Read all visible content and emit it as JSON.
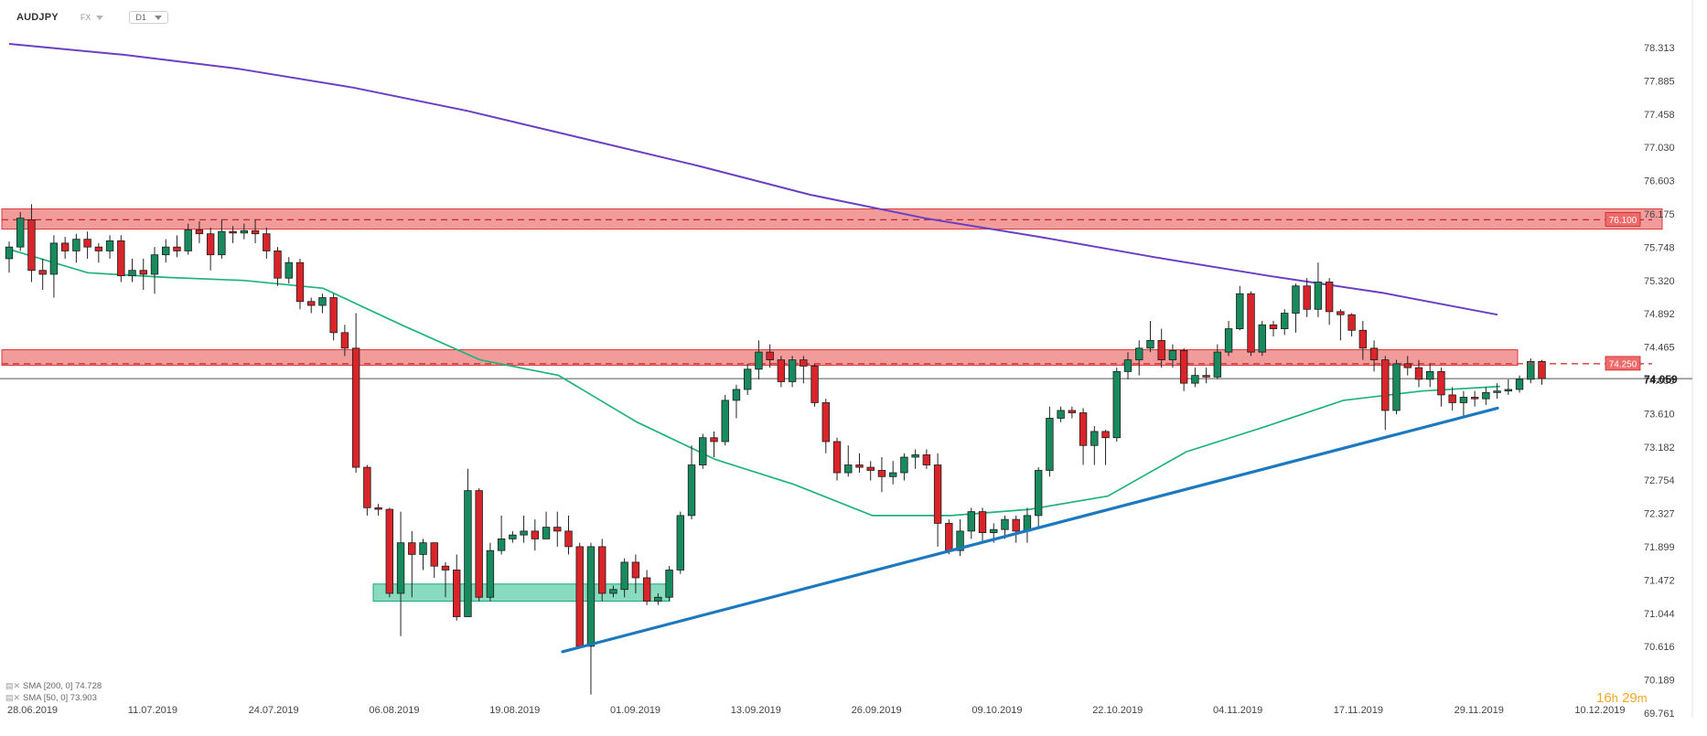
{
  "header": {
    "symbol": "AUDJPY",
    "market": "FX",
    "timeframe": "D1"
  },
  "indicators": [
    {
      "label": "SMA [200, 0] 74.728",
      "color": "#6b3fc4"
    },
    {
      "label": "SMA [50, 0] 73.903",
      "color": "#1fb37a"
    }
  ],
  "timer": {
    "hours": "16",
    "h_unit": "h",
    "minutes": "29",
    "m_unit": "m"
  },
  "chart_data": {
    "type": "candlestick",
    "instrument": "AUDJPY",
    "timeframe": "D1",
    "y_ticks": [
      "78.313",
      "77.885",
      "77.458",
      "77.030",
      "76.603",
      "76.175",
      "75.748",
      "75.320",
      "74.892",
      "74.465",
      "74.038",
      "73.610",
      "73.182",
      "72.754",
      "72.327",
      "71.899",
      "71.472",
      "71.044",
      "70.616",
      "70.189",
      "69.761"
    ],
    "ylim": [
      69.761,
      78.5
    ],
    "x_ticks": [
      "28.06.2019",
      "11.07.2019",
      "24.07.2019",
      "06.08.2019",
      "19.08.2019",
      "01.09.2019",
      "13.09.2019",
      "26.09.2019",
      "09.10.2019",
      "22.10.2019",
      "04.11.2019",
      "17.11.2019",
      "29.11.2019",
      "10.12.2019"
    ],
    "current_price": "74.059",
    "levels": [
      {
        "label": "76.100",
        "value": 76.1,
        "zone": [
          75.98,
          76.24
        ]
      },
      {
        "label": "74.250",
        "value": 74.25,
        "zone": [
          74.23,
          74.43
        ]
      }
    ],
    "demand_zone": {
      "from": 71.2,
      "to": 71.42
    },
    "trendline": {
      "from": 70.55,
      "to": 73.68
    },
    "candles": [
      [
        75.6,
        75.75,
        75.82,
        75.42
      ],
      [
        75.75,
        76.12,
        76.2,
        75.7
      ],
      [
        76.1,
        75.45,
        76.3,
        75.3
      ],
      [
        75.45,
        75.4,
        75.6,
        75.2
      ],
      [
        75.4,
        75.8,
        75.9,
        75.1
      ],
      [
        75.8,
        75.7,
        75.88,
        75.6
      ],
      [
        75.7,
        75.85,
        75.92,
        75.55
      ],
      [
        75.85,
        75.75,
        75.95,
        75.6
      ],
      [
        75.75,
        75.7,
        75.8,
        75.55
      ],
      [
        75.7,
        75.83,
        75.9,
        75.6
      ],
      [
        75.83,
        75.38,
        75.9,
        75.3
      ],
      [
        75.38,
        75.45,
        75.6,
        75.3
      ],
      [
        75.45,
        75.4,
        75.6,
        75.2
      ],
      [
        75.4,
        75.65,
        75.75,
        75.15
      ],
      [
        75.65,
        75.75,
        75.85,
        75.55
      ],
      [
        75.75,
        75.7,
        75.9,
        75.62
      ],
      [
        75.7,
        75.97,
        76.05,
        75.65
      ],
      [
        75.97,
        75.92,
        76.08,
        75.8
      ],
      [
        75.92,
        75.65,
        76.0,
        75.45
      ],
      [
        75.65,
        75.95,
        76.1,
        75.6
      ],
      [
        75.95,
        75.93,
        76.02,
        75.8
      ],
      [
        75.93,
        75.96,
        76.05,
        75.85
      ],
      [
        75.96,
        75.92,
        76.1,
        75.8
      ],
      [
        75.92,
        75.7,
        76.0,
        75.6
      ],
      [
        75.7,
        75.35,
        75.75,
        75.25
      ],
      [
        75.35,
        75.55,
        75.62,
        75.28
      ],
      [
        75.55,
        75.05,
        75.6,
        74.95
      ],
      [
        75.05,
        75.0,
        75.1,
        74.9
      ],
      [
        75.0,
        75.1,
        75.15,
        74.9
      ],
      [
        75.1,
        74.65,
        75.15,
        74.55
      ],
      [
        74.65,
        74.45,
        74.75,
        74.35
      ],
      [
        74.45,
        72.92,
        74.9,
        72.85
      ],
      [
        72.92,
        72.4,
        72.95,
        72.3
      ],
      [
        72.4,
        72.38,
        72.45,
        72.3
      ],
      [
        72.38,
        71.3,
        72.4,
        71.25
      ],
      [
        71.3,
        71.95,
        72.35,
        70.75
      ],
      [
        71.95,
        71.8,
        72.1,
        71.25
      ],
      [
        71.8,
        71.95,
        72.0,
        71.6
      ],
      [
        71.95,
        71.65,
        71.95,
        71.5
      ],
      [
        71.65,
        71.6,
        71.7,
        71.25
      ],
      [
        71.6,
        71.0,
        71.8,
        70.95
      ],
      [
        71.0,
        72.62,
        72.9,
        71.0
      ],
      [
        72.62,
        71.25,
        72.65,
        71.2
      ],
      [
        71.25,
        71.85,
        71.95,
        71.2
      ],
      [
        71.85,
        72.0,
        72.3,
        71.8
      ],
      [
        72.0,
        72.05,
        72.1,
        71.95
      ],
      [
        72.05,
        72.1,
        72.3,
        71.95
      ],
      [
        72.1,
        72.0,
        72.25,
        71.85
      ],
      [
        72.0,
        72.15,
        72.35,
        72.05
      ],
      [
        72.15,
        72.1,
        72.35,
        71.9
      ],
      [
        72.1,
        71.9,
        72.3,
        71.8
      ],
      [
        71.9,
        70.62,
        71.95,
        70.6
      ],
      [
        70.62,
        71.9,
        71.95,
        70.0
      ],
      [
        71.9,
        71.3,
        72.0,
        71.2
      ],
      [
        71.3,
        71.35,
        71.4,
        71.25
      ],
      [
        71.35,
        71.7,
        71.75,
        71.25
      ],
      [
        71.7,
        71.5,
        71.8,
        71.3
      ],
      [
        71.5,
        71.2,
        71.6,
        71.15
      ],
      [
        71.2,
        71.25,
        71.3,
        71.15
      ],
      [
        71.25,
        71.6,
        71.65,
        71.2
      ],
      [
        71.6,
        72.3,
        72.35,
        71.55
      ],
      [
        72.3,
        72.95,
        73.2,
        72.25
      ],
      [
        72.95,
        73.3,
        73.35,
        72.9
      ],
      [
        73.3,
        73.25,
        73.38,
        73.05
      ],
      [
        73.25,
        73.78,
        73.85,
        73.2
      ],
      [
        73.78,
        73.92,
        73.98,
        73.55
      ],
      [
        73.92,
        74.18,
        74.25,
        73.85
      ],
      [
        74.18,
        74.4,
        74.55,
        74.05
      ],
      [
        74.4,
        74.3,
        74.5,
        74.2
      ],
      [
        74.3,
        74.02,
        74.35,
        73.95
      ],
      [
        74.02,
        74.3,
        74.35,
        73.95
      ],
      [
        74.3,
        74.22,
        74.35,
        74.0
      ],
      [
        74.22,
        73.75,
        74.25,
        73.7
      ],
      [
        73.75,
        73.25,
        73.8,
        73.1
      ],
      [
        73.25,
        72.85,
        73.3,
        72.75
      ],
      [
        72.85,
        72.95,
        73.2,
        72.8
      ],
      [
        72.95,
        72.92,
        73.1,
        72.85
      ],
      [
        72.92,
        72.88,
        73.0,
        72.75
      ],
      [
        72.88,
        72.8,
        73.05,
        72.6
      ],
      [
        72.8,
        72.85,
        73.0,
        72.7
      ],
      [
        72.85,
        73.05,
        73.1,
        72.75
      ],
      [
        73.05,
        73.08,
        73.15,
        72.9
      ],
      [
        73.08,
        72.95,
        73.15,
        72.9
      ],
      [
        72.95,
        72.2,
        73.1,
        71.9
      ],
      [
        72.2,
        71.85,
        72.25,
        71.8
      ],
      [
        71.85,
        72.1,
        72.25,
        71.78
      ],
      [
        72.1,
        72.35,
        72.4,
        72.0
      ],
      [
        72.35,
        72.08,
        72.4,
        71.95
      ],
      [
        72.08,
        72.12,
        72.2,
        71.95
      ],
      [
        72.12,
        72.25,
        72.3,
        72.0
      ],
      [
        72.25,
        72.1,
        72.3,
        71.95
      ],
      [
        72.1,
        72.3,
        72.4,
        71.95
      ],
      [
        72.3,
        72.88,
        72.92,
        72.15
      ],
      [
        72.88,
        73.55,
        73.7,
        72.8
      ],
      [
        73.55,
        73.65,
        73.7,
        73.5
      ],
      [
        73.65,
        73.62,
        73.7,
        73.55
      ],
      [
        73.62,
        73.2,
        73.68,
        72.95
      ],
      [
        73.2,
        73.38,
        73.45,
        72.95
      ],
      [
        73.38,
        73.3,
        73.4,
        72.95
      ],
      [
        73.3,
        74.15,
        74.2,
        73.25
      ],
      [
        74.15,
        74.3,
        74.4,
        74.05
      ],
      [
        74.3,
        74.45,
        74.55,
        74.1
      ],
      [
        74.45,
        74.55,
        74.8,
        74.4
      ],
      [
        74.55,
        74.3,
        74.7,
        74.2
      ],
      [
        74.3,
        74.42,
        74.5,
        74.2
      ],
      [
        74.42,
        74.0,
        74.45,
        73.9
      ],
      [
        74.0,
        74.1,
        74.2,
        73.95
      ],
      [
        74.1,
        74.08,
        74.2,
        74.0
      ],
      [
        74.08,
        74.4,
        74.5,
        74.05
      ],
      [
        74.4,
        74.7,
        74.8,
        74.35
      ],
      [
        74.7,
        75.15,
        75.25,
        74.68
      ],
      [
        75.15,
        74.4,
        75.18,
        74.35
      ],
      [
        74.4,
        74.75,
        74.8,
        74.35
      ],
      [
        74.75,
        74.7,
        74.8,
        74.6
      ],
      [
        74.7,
        74.9,
        74.95,
        74.62
      ],
      [
        74.9,
        75.25,
        75.28,
        74.65
      ],
      [
        75.25,
        74.95,
        75.35,
        74.85
      ],
      [
        74.95,
        75.3,
        75.55,
        74.85
      ],
      [
        75.3,
        74.92,
        75.35,
        74.75
      ],
      [
        74.92,
        74.88,
        74.95,
        74.55
      ],
      [
        74.88,
        74.68,
        74.9,
        74.6
      ],
      [
        74.68,
        74.45,
        74.8,
        74.3
      ],
      [
        74.45,
        74.3,
        74.55,
        74.15
      ],
      [
        74.3,
        73.65,
        74.35,
        73.4
      ],
      [
        73.65,
        74.25,
        74.3,
        73.6
      ],
      [
        74.25,
        74.2,
        74.35,
        74.1
      ],
      [
        74.2,
        74.05,
        74.3,
        73.95
      ],
      [
        74.05,
        74.15,
        74.25,
        73.95
      ],
      [
        74.15,
        73.85,
        74.2,
        73.7
      ],
      [
        73.85,
        73.75,
        73.95,
        73.65
      ],
      [
        73.75,
        73.82,
        73.9,
        73.55
      ],
      [
        73.82,
        73.8,
        73.9,
        73.7
      ],
      [
        73.8,
        73.88,
        73.95,
        73.72
      ],
      [
        73.88,
        73.9,
        74.0,
        73.8
      ],
      [
        73.9,
        73.92,
        74.05,
        73.85
      ],
      [
        73.92,
        74.05,
        74.1,
        73.88
      ],
      [
        74.05,
        74.28,
        74.32,
        74.0
      ],
      [
        74.28,
        74.06,
        74.3,
        73.98
      ]
    ],
    "sma200": [
      78.36,
      78.22,
      78.04,
      77.8,
      77.5,
      77.15,
      76.8,
      76.42,
      76.12,
      75.88,
      75.62,
      75.38,
      75.16,
      74.88
    ],
    "sma50": [
      75.72,
      75.42,
      75.36,
      75.32,
      75.22,
      74.75,
      74.3,
      74.1,
      73.5,
      73.02,
      72.7,
      72.3,
      72.3,
      72.38,
      72.55,
      73.12,
      73.44,
      73.78,
      73.9,
      73.96
    ]
  }
}
